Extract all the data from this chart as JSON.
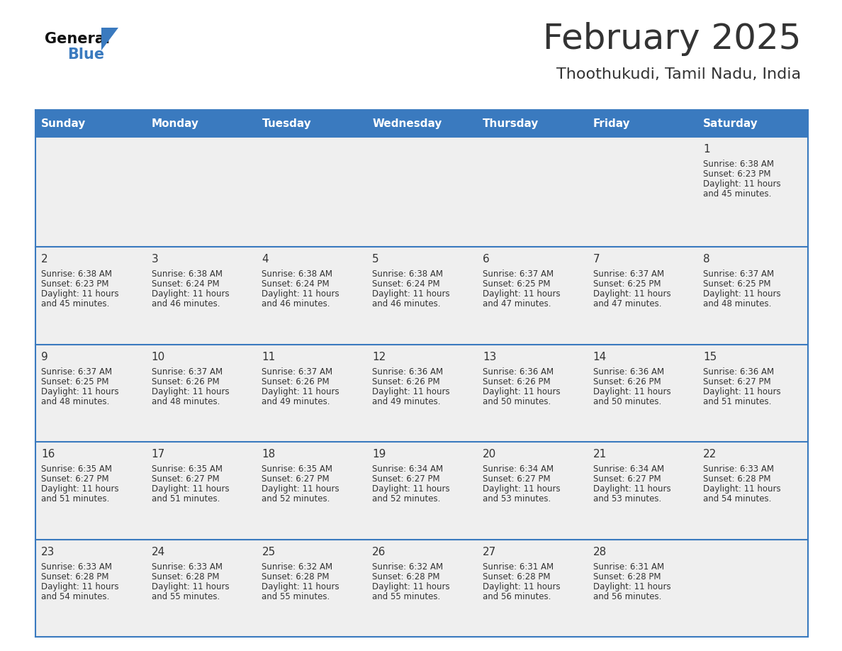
{
  "title": "February 2025",
  "subtitle": "Thoothukudi, Tamil Nadu, India",
  "days_of_week": [
    "Sunday",
    "Monday",
    "Tuesday",
    "Wednesday",
    "Thursday",
    "Friday",
    "Saturday"
  ],
  "header_bg": "#3a7abf",
  "header_text": "#ffffff",
  "cell_bg_light": "#efefef",
  "cell_bg_white": "#ffffff",
  "divider_color": "#3a7abf",
  "text_color": "#333333",
  "logo_general_color": "#111111",
  "logo_blue_color": "#3a7abf",
  "calendar_data": [
    {
      "day": 1,
      "col": 6,
      "row": 0,
      "sunrise": "6:38 AM",
      "sunset": "6:23 PM",
      "daylight_hours": 11,
      "daylight_minutes": 45
    },
    {
      "day": 2,
      "col": 0,
      "row": 1,
      "sunrise": "6:38 AM",
      "sunset": "6:23 PM",
      "daylight_hours": 11,
      "daylight_minutes": 45
    },
    {
      "day": 3,
      "col": 1,
      "row": 1,
      "sunrise": "6:38 AM",
      "sunset": "6:24 PM",
      "daylight_hours": 11,
      "daylight_minutes": 46
    },
    {
      "day": 4,
      "col": 2,
      "row": 1,
      "sunrise": "6:38 AM",
      "sunset": "6:24 PM",
      "daylight_hours": 11,
      "daylight_minutes": 46
    },
    {
      "day": 5,
      "col": 3,
      "row": 1,
      "sunrise": "6:38 AM",
      "sunset": "6:24 PM",
      "daylight_hours": 11,
      "daylight_minutes": 46
    },
    {
      "day": 6,
      "col": 4,
      "row": 1,
      "sunrise": "6:37 AM",
      "sunset": "6:25 PM",
      "daylight_hours": 11,
      "daylight_minutes": 47
    },
    {
      "day": 7,
      "col": 5,
      "row": 1,
      "sunrise": "6:37 AM",
      "sunset": "6:25 PM",
      "daylight_hours": 11,
      "daylight_minutes": 47
    },
    {
      "day": 8,
      "col": 6,
      "row": 1,
      "sunrise": "6:37 AM",
      "sunset": "6:25 PM",
      "daylight_hours": 11,
      "daylight_minutes": 48
    },
    {
      "day": 9,
      "col": 0,
      "row": 2,
      "sunrise": "6:37 AM",
      "sunset": "6:25 PM",
      "daylight_hours": 11,
      "daylight_minutes": 48
    },
    {
      "day": 10,
      "col": 1,
      "row": 2,
      "sunrise": "6:37 AM",
      "sunset": "6:26 PM",
      "daylight_hours": 11,
      "daylight_minutes": 48
    },
    {
      "day": 11,
      "col": 2,
      "row": 2,
      "sunrise": "6:37 AM",
      "sunset": "6:26 PM",
      "daylight_hours": 11,
      "daylight_minutes": 49
    },
    {
      "day": 12,
      "col": 3,
      "row": 2,
      "sunrise": "6:36 AM",
      "sunset": "6:26 PM",
      "daylight_hours": 11,
      "daylight_minutes": 49
    },
    {
      "day": 13,
      "col": 4,
      "row": 2,
      "sunrise": "6:36 AM",
      "sunset": "6:26 PM",
      "daylight_hours": 11,
      "daylight_minutes": 50
    },
    {
      "day": 14,
      "col": 5,
      "row": 2,
      "sunrise": "6:36 AM",
      "sunset": "6:26 PM",
      "daylight_hours": 11,
      "daylight_minutes": 50
    },
    {
      "day": 15,
      "col": 6,
      "row": 2,
      "sunrise": "6:36 AM",
      "sunset": "6:27 PM",
      "daylight_hours": 11,
      "daylight_minutes": 51
    },
    {
      "day": 16,
      "col": 0,
      "row": 3,
      "sunrise": "6:35 AM",
      "sunset": "6:27 PM",
      "daylight_hours": 11,
      "daylight_minutes": 51
    },
    {
      "day": 17,
      "col": 1,
      "row": 3,
      "sunrise": "6:35 AM",
      "sunset": "6:27 PM",
      "daylight_hours": 11,
      "daylight_minutes": 51
    },
    {
      "day": 18,
      "col": 2,
      "row": 3,
      "sunrise": "6:35 AM",
      "sunset": "6:27 PM",
      "daylight_hours": 11,
      "daylight_minutes": 52
    },
    {
      "day": 19,
      "col": 3,
      "row": 3,
      "sunrise": "6:34 AM",
      "sunset": "6:27 PM",
      "daylight_hours": 11,
      "daylight_minutes": 52
    },
    {
      "day": 20,
      "col": 4,
      "row": 3,
      "sunrise": "6:34 AM",
      "sunset": "6:27 PM",
      "daylight_hours": 11,
      "daylight_minutes": 53
    },
    {
      "day": 21,
      "col": 5,
      "row": 3,
      "sunrise": "6:34 AM",
      "sunset": "6:27 PM",
      "daylight_hours": 11,
      "daylight_minutes": 53
    },
    {
      "day": 22,
      "col": 6,
      "row": 3,
      "sunrise": "6:33 AM",
      "sunset": "6:28 PM",
      "daylight_hours": 11,
      "daylight_minutes": 54
    },
    {
      "day": 23,
      "col": 0,
      "row": 4,
      "sunrise": "6:33 AM",
      "sunset": "6:28 PM",
      "daylight_hours": 11,
      "daylight_minutes": 54
    },
    {
      "day": 24,
      "col": 1,
      "row": 4,
      "sunrise": "6:33 AM",
      "sunset": "6:28 PM",
      "daylight_hours": 11,
      "daylight_minutes": 55
    },
    {
      "day": 25,
      "col": 2,
      "row": 4,
      "sunrise": "6:32 AM",
      "sunset": "6:28 PM",
      "daylight_hours": 11,
      "daylight_minutes": 55
    },
    {
      "day": 26,
      "col": 3,
      "row": 4,
      "sunrise": "6:32 AM",
      "sunset": "6:28 PM",
      "daylight_hours": 11,
      "daylight_minutes": 55
    },
    {
      "day": 27,
      "col": 4,
      "row": 4,
      "sunrise": "6:31 AM",
      "sunset": "6:28 PM",
      "daylight_hours": 11,
      "daylight_minutes": 56
    },
    {
      "day": 28,
      "col": 5,
      "row": 4,
      "sunrise": "6:31 AM",
      "sunset": "6:28 PM",
      "daylight_hours": 11,
      "daylight_minutes": 56
    }
  ],
  "num_rows": 5,
  "num_cols": 7
}
